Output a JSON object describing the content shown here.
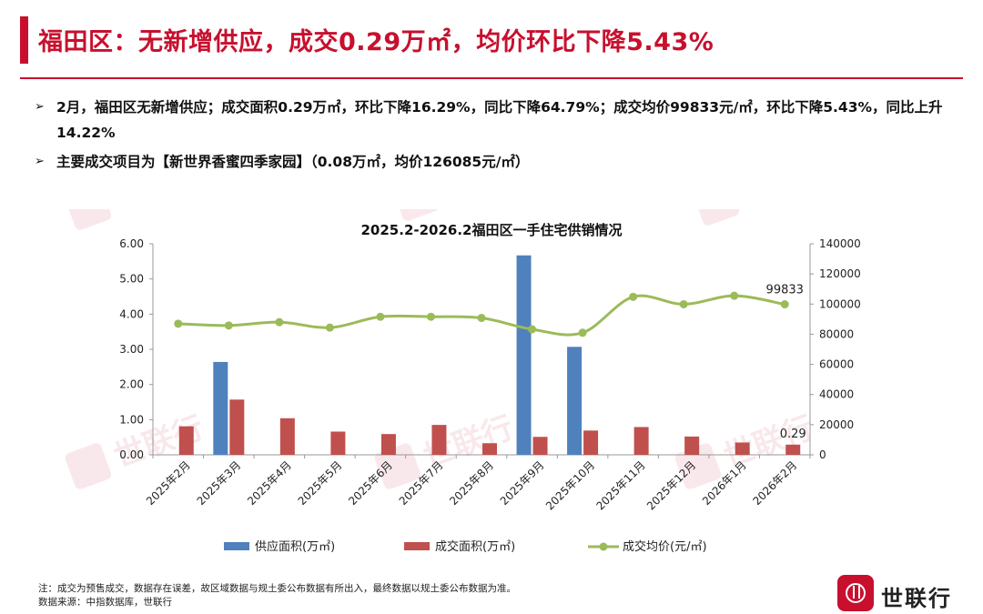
{
  "title": "福田区：无新增供应，成交0.29万㎡，均价环比下降5.43%",
  "bullets": [
    "2月，福田区无新增供应；成交面积0.29万㎡，环比下降16.29%，同比下降64.79%；成交均价99833元/㎡，环比下降5.43%，同比上升14.22%",
    "主要成交项目为【新世界香蜜四季家园】（0.08万㎡，均价126085元/㎡）"
  ],
  "watermark": "世联行",
  "footnote": {
    "note": "注：成交为预售成交，数据存在误差，故区域数据与规土委公布数据有所出入，最终数据以规土委公布数据为准。",
    "source": "数据来源：中指数据库，世联行"
  },
  "logo": {
    "text": "世联行"
  },
  "colors": {
    "brand_red": "#c8102e",
    "supply_bar": "#4f81bd",
    "deal_bar": "#c0504d",
    "price_line": "#9bbb59"
  },
  "chart_data": {
    "type": "bar",
    "title": "2025.2-2026.2福田区一手住宅供销情况",
    "categories": [
      "2025年2月",
      "2025年3月",
      "2025年4月",
      "2025年5月",
      "2025年6月",
      "2025年7月",
      "2025年8月",
      "2025年9月",
      "2025年10月",
      "2025年11月",
      "2025年12月",
      "2026年1月",
      "2026年2月"
    ],
    "series": [
      {
        "name": "供应面积(万㎡)",
        "type": "bar",
        "axis": "left",
        "values": [
          0,
          2.64,
          0,
          0,
          0,
          0,
          0,
          5.67,
          3.07,
          0,
          0,
          0,
          0
        ]
      },
      {
        "name": "成交面积(万㎡)",
        "type": "bar",
        "axis": "left",
        "values": [
          0.81,
          1.57,
          1.04,
          0.66,
          0.59,
          0.85,
          0.33,
          0.51,
          0.69,
          0.79,
          0.52,
          0.35,
          0.29
        ]
      },
      {
        "name": "成交均价(元/㎡)",
        "type": "line",
        "axis": "right",
        "values": [
          87000,
          85800,
          88000,
          84400,
          91600,
          91600,
          90800,
          83300,
          81000,
          104800,
          99900,
          105500,
          99833
        ]
      }
    ],
    "ylim_left": [
      0,
      6
    ],
    "left_ticks": [
      "0.00",
      "1.00",
      "2.00",
      "3.00",
      "4.00",
      "5.00",
      "6.00"
    ],
    "ylim_right": [
      0,
      140000
    ],
    "right_ticks": [
      "0",
      "20000",
      "40000",
      "60000",
      "80000",
      "100000",
      "120000",
      "140000"
    ],
    "data_labels": [
      {
        "series": 1,
        "index": 12,
        "text": "0.29"
      },
      {
        "series": 2,
        "index": 12,
        "text": "99833"
      }
    ],
    "legend_position": "bottom",
    "grid": false
  }
}
